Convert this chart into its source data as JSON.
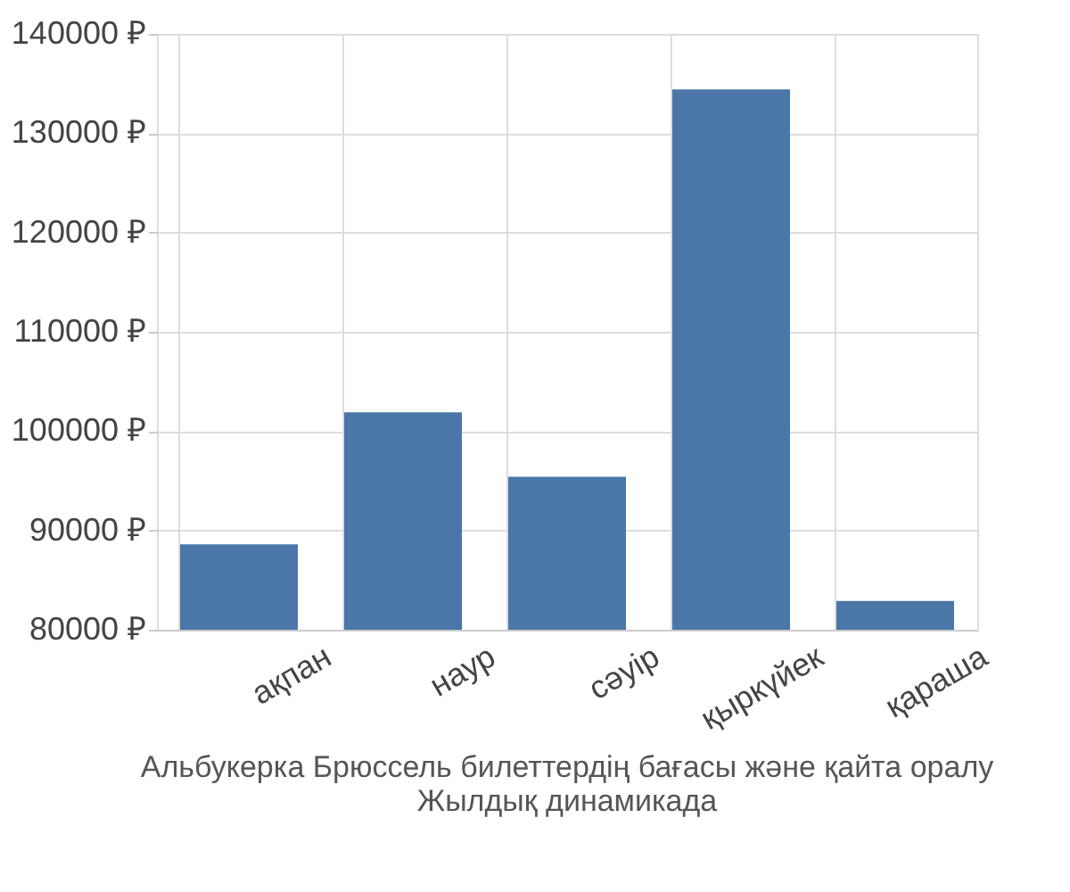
{
  "chart_data": {
    "type": "bar",
    "categories": [
      "ақпан",
      "наур",
      "сәуір",
      "қыркүйек",
      "қараша"
    ],
    "values": [
      88600,
      101900,
      95400,
      134400,
      82900
    ],
    "color": "#4a76a8",
    "ylim": [
      80000,
      140000
    ],
    "yticks": [
      {
        "value": 80000,
        "label": "80000 ₽"
      },
      {
        "value": 90000,
        "label": "90000 ₽"
      },
      {
        "value": 100000,
        "label": "100000 ₽"
      },
      {
        "value": 110000,
        "label": "110000 ₽"
      },
      {
        "value": 120000,
        "label": "120000 ₽"
      },
      {
        "value": 130000,
        "label": "130000 ₽"
      },
      {
        "value": 140000,
        "label": "140000 ₽"
      }
    ],
    "grid": true,
    "annotations": [
      "Альбукерка Брюссель билеттердің бағасы және қайта оралу",
      "Жылдық динамикада"
    ]
  }
}
